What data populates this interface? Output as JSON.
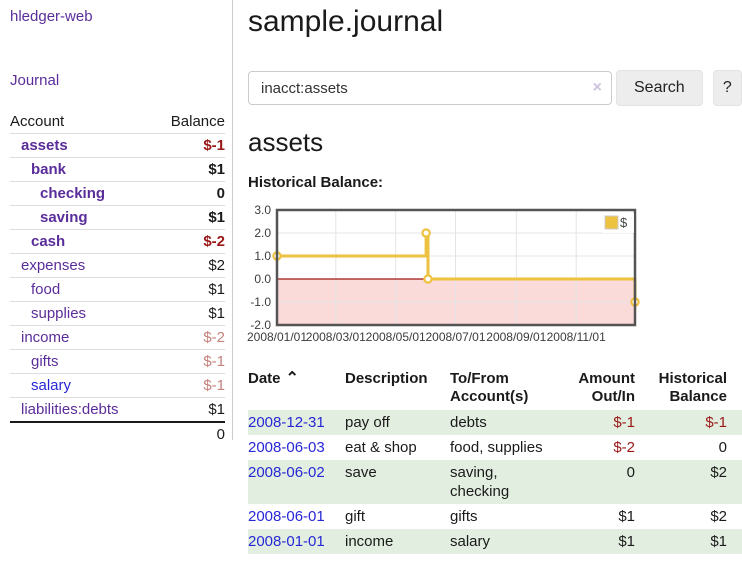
{
  "sidebar": {
    "brand": "hledger-web",
    "nav_journal": "Journal",
    "accounts": {
      "header_account": "Account",
      "header_balance": "Balance",
      "rows": [
        {
          "account": "assets",
          "indent": 0,
          "balance": "$-1"
        },
        {
          "account": "bank",
          "indent": 1,
          "balance": "$1"
        },
        {
          "account": "checking",
          "indent": 2,
          "balance": "0"
        },
        {
          "account": "saving",
          "indent": 2,
          "balance": "$1"
        },
        {
          "account": "cash",
          "indent": 1,
          "balance": "$-2"
        },
        {
          "account": "expenses",
          "indent": 0,
          "balance": "$2"
        },
        {
          "account": "food",
          "indent": 1,
          "balance": "$1"
        },
        {
          "account": "supplies",
          "indent": 1,
          "balance": "$1"
        },
        {
          "account": "income",
          "indent": 0,
          "balance": "$-2"
        },
        {
          "account": "gifts",
          "indent": 1,
          "balance": "$-1"
        },
        {
          "account": "salary",
          "indent": 1,
          "balance": "$-1"
        },
        {
          "account": "liabilities:debts",
          "indent": 0,
          "balance": "$1"
        }
      ],
      "total": "0"
    }
  },
  "header": {
    "title": "sample.journal",
    "search": {
      "value": "inacct:assets",
      "clear_icon": "×",
      "search_button": "Search",
      "help_button": "?"
    }
  },
  "main": {
    "account_heading": "assets",
    "chart_title": "Historical Balance:",
    "register": {
      "col_date": "Date",
      "sort_arrow": "⌃",
      "col_description": "Description",
      "col_accounts": "To/From Account(s)",
      "col_amount": "Amount Out/In",
      "col_balance": "Historical Balance",
      "rows": [
        {
          "date": "2008-12-31",
          "description": "pay off",
          "accounts": "debts",
          "amount": "$-1",
          "balance": "$-1"
        },
        {
          "date": "2008-06-03",
          "description": "eat & shop",
          "accounts": "food, supplies",
          "amount": "$-2",
          "balance": "0"
        },
        {
          "date": "2008-06-02",
          "description": "save",
          "accounts": "saving, checking",
          "amount": "0",
          "balance": "$2"
        },
        {
          "date": "2008-06-01",
          "description": "gift",
          "accounts": "gifts",
          "amount": "$1",
          "balance": "$2"
        },
        {
          "date": "2008-01-01",
          "description": "income",
          "accounts": "salary",
          "amount": "$1",
          "balance": "$1"
        }
      ]
    }
  },
  "chart_data": {
    "type": "line",
    "title": "Historical Balance:",
    "legend_label": "$",
    "legend_position": "top-right",
    "x_type": "date",
    "xlim": [
      "2008-01-01",
      "2008-12-31"
    ],
    "ylim": [
      -2,
      3
    ],
    "yticks": [
      3.0,
      2.0,
      1.0,
      0.0,
      -1.0,
      -2.0
    ],
    "xtick_labels": [
      "2008/01/01",
      "2008/03/01",
      "2008/05/01",
      "2008/07/01",
      "2008/09/01",
      "2008/11/01"
    ],
    "grid": true,
    "series": [
      {
        "name": "$",
        "color": "#edc240",
        "step": true,
        "points": [
          {
            "date": "2008-01-01",
            "value": 1
          },
          {
            "date": "2008-06-01",
            "value": 2
          },
          {
            "date": "2008-06-03",
            "value": 0
          },
          {
            "date": "2008-12-31",
            "value": -1
          }
        ]
      }
    ],
    "negative_region_fill": "#fbdada",
    "zero_line_color": "#a01515",
    "grid_color": "#e4e4e4",
    "border_color": "#545454"
  },
  "colors": {
    "link_purple": "#5b2d9a",
    "link_blue": "#2727d6",
    "negative_strong": "#9b1717",
    "negative_muted": "#c5817c",
    "row_stripe_green": "#e2efe0",
    "chart_line_gold": "#edc240"
  }
}
